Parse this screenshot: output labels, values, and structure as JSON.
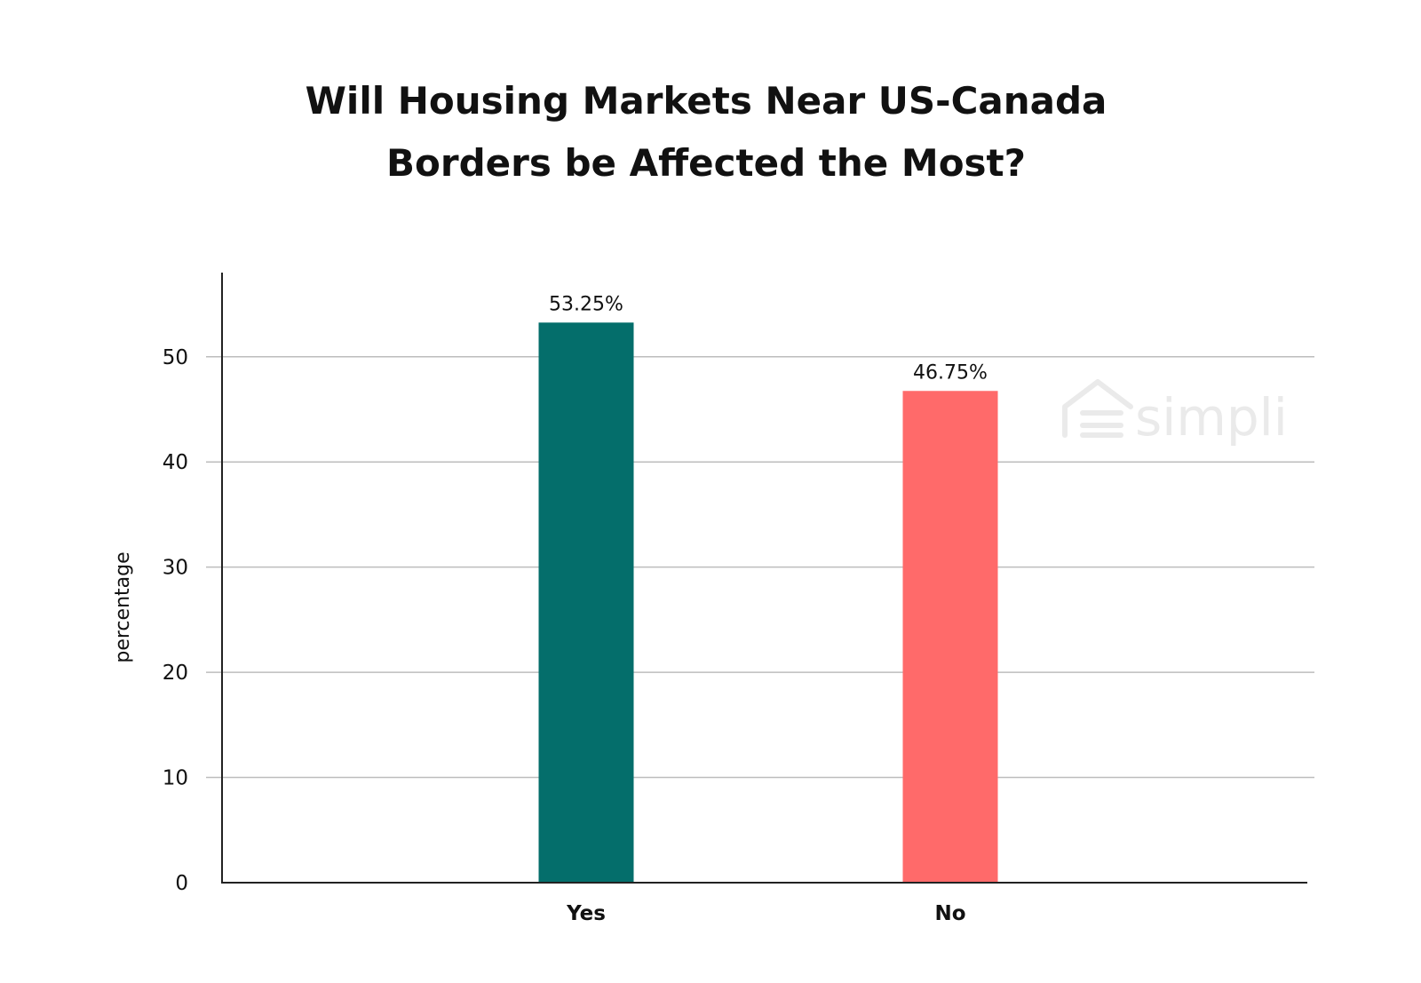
{
  "chart_data": {
    "type": "bar",
    "title_lines": [
      "Will Housing Markets Near US-Canada",
      "Borders be Affected the Most?"
    ],
    "categories": [
      "Yes",
      "No"
    ],
    "values": [
      53.25,
      46.75
    ],
    "data_labels": [
      "53.25%",
      "46.75%"
    ],
    "colors": [
      "#046e6b",
      "#ff6a6a"
    ],
    "xlabel": "",
    "ylabel": "percentage",
    "ylim": [
      0,
      58
    ],
    "yticks": [
      "0",
      "10",
      "20",
      "30",
      "40",
      "50"
    ],
    "grid": true,
    "grid_color": "#bdbdbd",
    "legend": "none"
  },
  "watermark": {
    "text": "simpli",
    "icon": "house-logo-icon"
  }
}
